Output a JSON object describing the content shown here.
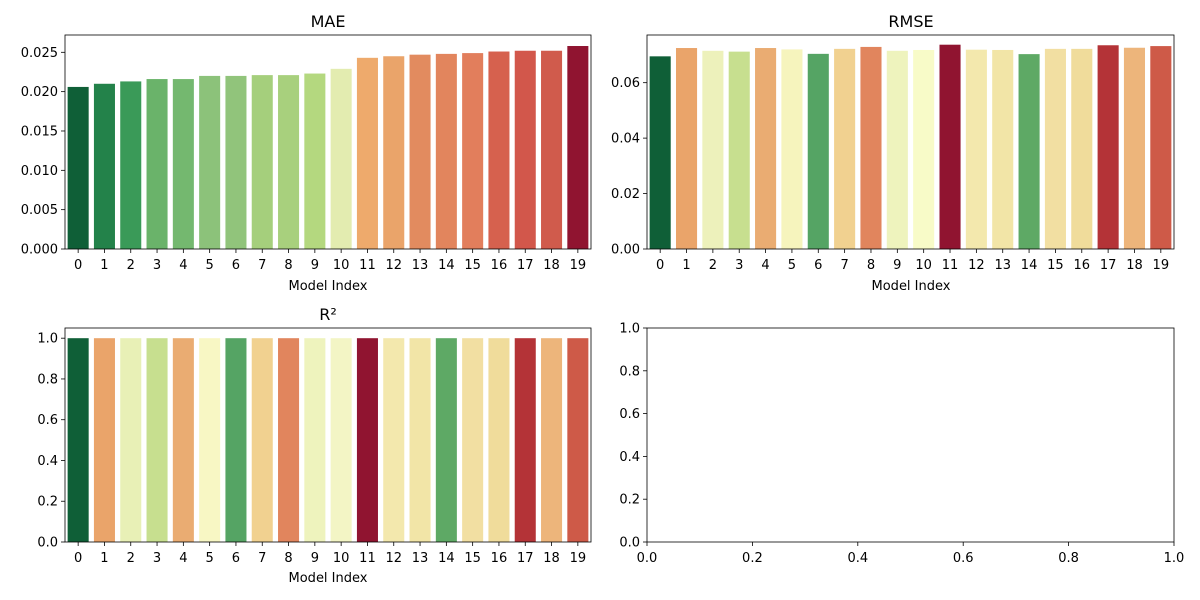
{
  "chart_data": [
    {
      "type": "bar",
      "title": "MAE",
      "xlabel": "Model Index",
      "ylabel": "",
      "categories": [
        "0",
        "1",
        "2",
        "3",
        "4",
        "5",
        "6",
        "7",
        "8",
        "9",
        "10",
        "11",
        "12",
        "13",
        "14",
        "15",
        "16",
        "17",
        "18",
        "19"
      ],
      "values": [
        0.0206,
        0.021,
        0.0213,
        0.0216,
        0.0216,
        0.022,
        0.022,
        0.0221,
        0.0221,
        0.0223,
        0.0229,
        0.0243,
        0.0245,
        0.0247,
        0.0248,
        0.0249,
        0.0251,
        0.0252,
        0.0252,
        0.0258
      ],
      "colors": [
        "#0f5f37",
        "#23824a",
        "#3a9a58",
        "#6ab36a",
        "#74b86f",
        "#8cc27a",
        "#91c47b",
        "#a5cf7c",
        "#a8d07d",
        "#b4d87f",
        "#e3ecb0",
        "#eeaa6c",
        "#eaa46a",
        "#e28b5f",
        "#e2855d",
        "#e27e5c",
        "#d6614e",
        "#d2574b",
        "#d05b4c",
        "#901430"
      ],
      "ylim": [
        0,
        0.0272
      ],
      "yticks": [
        0.0,
        0.005,
        0.01,
        0.015,
        0.02,
        0.025
      ],
      "ytick_labels": [
        "0.000",
        "0.005",
        "0.010",
        "0.015",
        "0.020",
        "0.025"
      ],
      "grid": false
    },
    {
      "type": "bar",
      "title": "RMSE",
      "xlabel": "Model Index",
      "ylabel": "",
      "categories": [
        "0",
        "1",
        "2",
        "3",
        "4",
        "5",
        "6",
        "7",
        "8",
        "9",
        "10",
        "11",
        "12",
        "13",
        "14",
        "15",
        "16",
        "17",
        "18",
        "19"
      ],
      "values": [
        0.0695,
        0.0725,
        0.0715,
        0.0712,
        0.0725,
        0.072,
        0.0704,
        0.0722,
        0.0729,
        0.0715,
        0.0718,
        0.0737,
        0.0719,
        0.0718,
        0.0703,
        0.0722,
        0.0722,
        0.0735,
        0.0726,
        0.0732
      ],
      "colors": [
        "#0f5f37",
        "#eaa46a",
        "#edf1bb",
        "#c7df8f",
        "#eaac72",
        "#f6f4bd",
        "#55a464",
        "#f1d190",
        "#e1855d",
        "#eef3bd",
        "#f8fbc8",
        "#901430",
        "#f3e8ad",
        "#f2e5a7",
        "#5ea965",
        "#f2dfa2",
        "#f0dc9b",
        "#b43337",
        "#edb57b",
        "#ce5a48"
      ],
      "ylim": [
        0,
        0.0772
      ],
      "yticks": [
        0.0,
        0.02,
        0.04,
        0.06
      ],
      "ytick_labels": [
        "0.00",
        "0.02",
        "0.04",
        "0.06"
      ],
      "grid": false
    },
    {
      "type": "bar",
      "title": "R²",
      "xlabel": "Model Index",
      "ylabel": "",
      "categories": [
        "0",
        "1",
        "2",
        "3",
        "4",
        "5",
        "6",
        "7",
        "8",
        "9",
        "10",
        "11",
        "12",
        "13",
        "14",
        "15",
        "16",
        "17",
        "18",
        "19"
      ],
      "values": [
        1.0,
        1.0,
        1.0,
        1.0,
        1.0,
        1.0,
        1.0,
        1.0,
        1.0,
        1.0,
        1.0,
        1.0,
        1.0,
        1.0,
        1.0,
        1.0,
        1.0,
        1.0,
        1.0,
        1.0
      ],
      "colors": [
        "#0f5f37",
        "#eaa46a",
        "#e8f0b6",
        "#c7df8f",
        "#eaac72",
        "#f8f7c4",
        "#55a464",
        "#f1d190",
        "#e1855d",
        "#eef3bd",
        "#f3f5c5",
        "#901430",
        "#f3e8ad",
        "#f2e5a7",
        "#5ea965",
        "#f2dfa2",
        "#f0dc9b",
        "#b43337",
        "#edb57b",
        "#ce5a48"
      ],
      "ylim": [
        0,
        1.05
      ],
      "yticks": [
        0.0,
        0.2,
        0.4,
        0.6,
        0.8,
        1.0
      ],
      "ytick_labels": [
        "0.0",
        "0.2",
        "0.4",
        "0.6",
        "0.8",
        "1.0"
      ],
      "grid": false
    },
    {
      "type": "bar",
      "title": "",
      "xlabel": "",
      "ylabel": "",
      "categories": [],
      "values": [],
      "colors": [],
      "xlim": [
        0,
        1
      ],
      "ylim": [
        0,
        1
      ],
      "xticks": [
        0.0,
        0.2,
        0.4,
        0.6,
        0.8,
        1.0
      ],
      "xtick_labels": [
        "0.0",
        "0.2",
        "0.4",
        "0.6",
        "0.8",
        "1.0"
      ],
      "yticks": [
        0.0,
        0.2,
        0.4,
        0.6,
        0.8,
        1.0
      ],
      "ytick_labels": [
        "0.0",
        "0.2",
        "0.4",
        "0.6",
        "0.8",
        "1.0"
      ],
      "grid": false
    }
  ]
}
